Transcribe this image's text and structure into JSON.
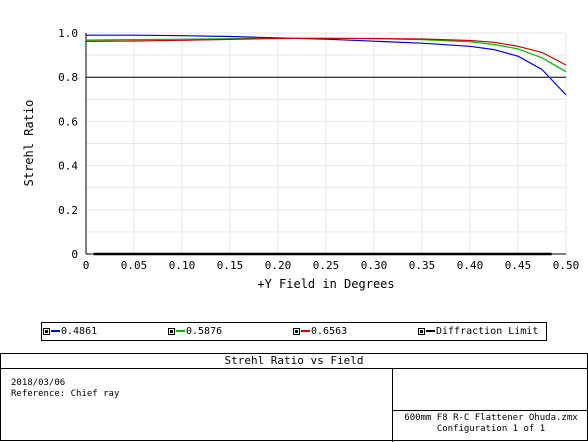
{
  "chart_data": {
    "type": "line",
    "title": "Strehl Ratio vs Field",
    "xlabel": "+Y Field in Degrees",
    "ylabel": "Strehl Ratio",
    "xlim": [
      0,
      0.5
    ],
    "ylim": [
      0,
      1.0
    ],
    "x_ticks": [
      "0",
      "0.05",
      "0.10",
      "0.15",
      "0.20",
      "0.25",
      "0.30",
      "0.35",
      "0.40",
      "0.45",
      "0.50"
    ],
    "y_ticks": [
      "0",
      "0.2",
      "0.4",
      "0.6",
      "0.8",
      "1.0"
    ],
    "grid": true,
    "diffraction_limit": 0.8,
    "x": [
      0,
      0.05,
      0.1,
      0.15,
      0.2,
      0.25,
      0.3,
      0.35,
      0.4,
      0.425,
      0.45,
      0.475,
      0.5
    ],
    "series": [
      {
        "name": "0.4861",
        "color": "#0000cc",
        "values": [
          0.99,
          0.99,
          0.988,
          0.984,
          0.978,
          0.972,
          0.963,
          0.954,
          0.94,
          0.925,
          0.895,
          0.835,
          0.72
        ]
      },
      {
        "name": "0.5876",
        "color": "#00bb00",
        "values": [
          0.968,
          0.97,
          0.972,
          0.974,
          0.976,
          0.976,
          0.974,
          0.97,
          0.96,
          0.948,
          0.928,
          0.888,
          0.825
        ]
      },
      {
        "name": "0.6563",
        "color": "#cc0000",
        "values": [
          0.962,
          0.964,
          0.967,
          0.971,
          0.975,
          0.976,
          0.975,
          0.973,
          0.966,
          0.958,
          0.94,
          0.912,
          0.855
        ]
      }
    ],
    "legend": [
      {
        "label": "0.4861",
        "color": "#0000cc"
      },
      {
        "label": "0.5876",
        "color": "#00bb00"
      },
      {
        "label": "0.6563",
        "color": "#cc0000"
      },
      {
        "label": "Diffraction Limit",
        "color": "#000000"
      }
    ]
  },
  "info": {
    "title": "Strehl Ratio vs Field",
    "date": "2018/03/06",
    "reference": "Reference: Chief ray",
    "filename": "600mm F8 R-C Flattener Ohuda.zmx",
    "configuration": "Configuration 1 of 1"
  }
}
